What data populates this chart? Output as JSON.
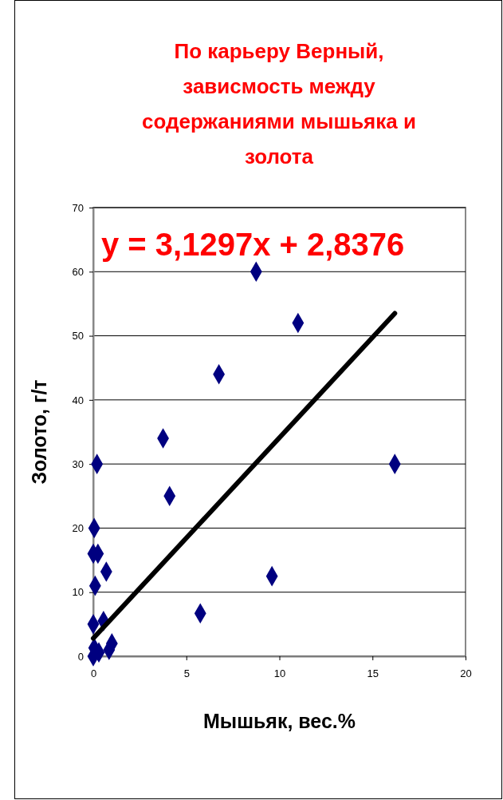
{
  "chart_data": {
    "type": "scatter",
    "title": "По карьеру Верный, зависмость между содержаниями мышьяка и золота",
    "xlabel": "Мышьяк, вес.%",
    "ylabel": "Золото, г/т",
    "annotations": [
      "y = 3,1297x + 2,8376"
    ],
    "series": [
      {
        "color": "#000080",
        "marker": "diamond",
        "x": [
          8.75,
          11.0,
          6.75,
          3.75,
          4.1,
          0.2,
          16.2,
          9.6,
          5.75,
          0.05,
          0,
          0.25,
          0.7,
          0.1,
          0,
          0.55,
          1.0,
          0.85,
          0,
          0.05,
          0.3
        ],
        "values": [
          60,
          52,
          44,
          34,
          25,
          30,
          30,
          12.5,
          6.7,
          20,
          16,
          16,
          13.2,
          11,
          5,
          5.5,
          2,
          1,
          0,
          1.3,
          0.6
        ]
      },
      {
        "type": "line",
        "color": "#000000",
        "x": [
          0,
          16.2
        ],
        "values": [
          2.8,
          53.5
        ]
      }
    ],
    "xlim": [
      0,
      20
    ],
    "xticks": [
      0,
      5,
      10,
      15,
      20
    ],
    "ylim": [
      0,
      70
    ],
    "yticks": [
      0,
      10,
      20,
      30,
      40,
      50,
      60,
      70
    ],
    "grid": "y"
  }
}
